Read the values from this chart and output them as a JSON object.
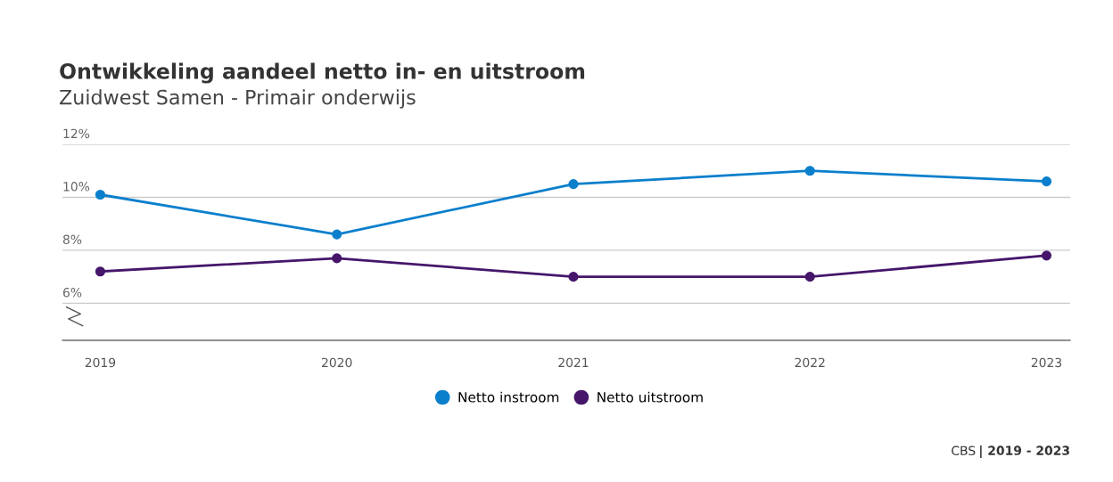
{
  "chart_data": {
    "type": "line",
    "title": "Ontwikkeling aandeel netto in- en uitstroom",
    "subtitle": "Zuidwest Samen - Primair onderwijs",
    "categories": [
      "2019",
      "2020",
      "2021",
      "2022",
      "2023"
    ],
    "series": [
      {
        "name": "Netto instroom",
        "color": "#0a7fcc",
        "values": [
          10.1,
          8.6,
          10.5,
          11.0,
          10.6
        ]
      },
      {
        "name": "Netto uitstroom",
        "color": "#46166b",
        "values": [
          7.2,
          7.7,
          7.0,
          7.0,
          7.8
        ]
      }
    ],
    "ylim": [
      4.6,
      12
    ],
    "yticks": [
      {
        "value": 6,
        "label": "6%"
      },
      {
        "value": 8,
        "label": "8%"
      },
      {
        "value": 10,
        "label": "10%"
      },
      {
        "value": 12,
        "label": "12%"
      }
    ],
    "grid": "y",
    "legend": "bottom",
    "marker": "circle",
    "line_style": "solid",
    "annotations": [
      "CBS",
      "| 2019 - 2023"
    ]
  }
}
